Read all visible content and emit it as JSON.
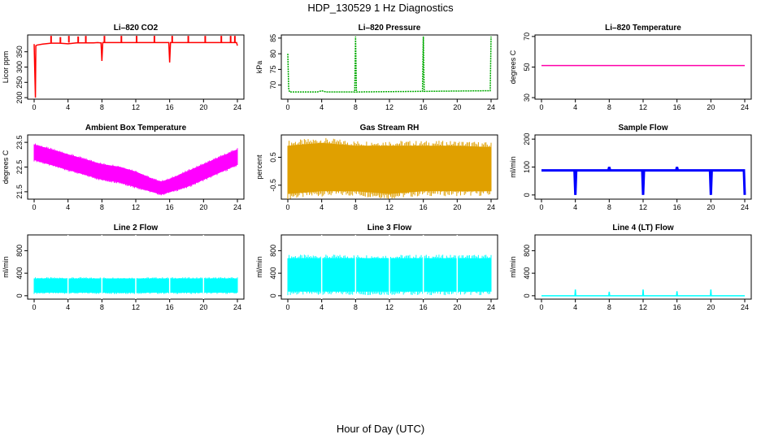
{
  "figure": {
    "title": "HDP_130529  1 Hz Diagnostics",
    "xlabel": "Hour of Day (UTC)"
  },
  "chart_data": [
    {
      "type": "line",
      "title": "Li–820 CO2",
      "ylabel": "Licor ppm",
      "color": "#ff0000",
      "xlim": [
        0,
        24
      ],
      "xticks": [
        0,
        4,
        8,
        12,
        16,
        20,
        24
      ],
      "ylim": [
        195,
        405
      ],
      "yticks": [
        200,
        250,
        300,
        350
      ],
      "x": [
        0,
        0.15,
        0.2,
        0.35,
        1,
        2,
        3,
        4,
        5,
        6,
        7,
        7.5,
        7.9,
        8,
        8.1,
        9,
        10,
        11,
        12,
        13,
        14,
        15,
        15.9,
        16,
        16.1,
        17,
        18,
        19,
        20,
        21,
        22,
        23,
        23.9,
        24
      ],
      "y": [
        375,
        200,
        370,
        372,
        375,
        378,
        378,
        376,
        379,
        379,
        379,
        380,
        379,
        320,
        380,
        380,
        380,
        380,
        380,
        380,
        380,
        380,
        380,
        315,
        380,
        380,
        380,
        380,
        380,
        380,
        380,
        380,
        380,
        370
      ],
      "spikes_x": [
        2,
        3.1,
        4.1,
        5.2,
        6.1,
        8.3,
        10.3,
        12.1,
        14.2,
        16.3,
        18.2,
        20.2,
        22.1,
        23.2,
        23.7
      ],
      "spikes_y": [
        402,
        398,
        402,
        400,
        402,
        402,
        402,
        402,
        402,
        402,
        402,
        402,
        402,
        402,
        402
      ]
    },
    {
      "type": "line",
      "title": "Li–820 Pressure",
      "ylabel": "kPa",
      "color": "#00aa00",
      "xlim": [
        0,
        24
      ],
      "xticks": [
        0,
        4,
        8,
        12,
        16,
        20,
        24
      ],
      "ylim": [
        65.5,
        86
      ],
      "yticks": [
        70,
        75,
        80,
        85
      ],
      "x": [
        0,
        0.1,
        0.2,
        0.3,
        3.5,
        4,
        4.5,
        7.9,
        8,
        8.1,
        15.9,
        16,
        16.1,
        23.9,
        24
      ],
      "y": [
        80,
        69,
        67.8,
        67.8,
        67.8,
        68.2,
        67.8,
        67.8,
        85.5,
        67.8,
        68,
        85.5,
        68,
        68.2,
        85.5
      ]
    },
    {
      "type": "line",
      "title": "Li–820 Temperature",
      "ylabel": "degrees C",
      "color": "#ff00aa",
      "xlim": [
        0,
        24
      ],
      "xticks": [
        0,
        4,
        8,
        12,
        16,
        20,
        24
      ],
      "ylim": [
        29,
        71
      ],
      "yticks": [
        30,
        50,
        70
      ],
      "x": [
        0,
        24
      ],
      "y": [
        51,
        51
      ]
    },
    {
      "type": "area",
      "title": "Ambient Box Temperature",
      "ylabel": "degrees C",
      "color": "#ff00ff",
      "xlim": [
        0,
        24
      ],
      "xticks": [
        0,
        4,
        8,
        12,
        16,
        20,
        24
      ],
      "ylim": [
        21.2,
        23.8
      ],
      "yticks": [
        21.5,
        22.5,
        23.5
      ],
      "x": [
        0,
        2,
        4,
        6,
        8,
        10,
        12,
        14,
        15,
        16,
        18,
        20,
        22,
        24
      ],
      "upper": [
        23.4,
        23.2,
        23.0,
        22.8,
        22.6,
        22.5,
        22.3,
        22.0,
        21.9,
        22.0,
        22.3,
        22.6,
        22.9,
        23.2
      ],
      "lower": [
        22.8,
        22.6,
        22.4,
        22.2,
        22.0,
        21.9,
        21.7,
        21.5,
        21.4,
        21.5,
        21.7,
        22.0,
        22.3,
        22.6
      ]
    },
    {
      "type": "area",
      "title": "Gas Stream RH",
      "ylabel": "percent",
      "color": "#e0a000",
      "xlim": [
        0,
        24
      ],
      "xticks": [
        0,
        4,
        8,
        12,
        16,
        20,
        24
      ],
      "ylim": [
        -1.0,
        1.3
      ],
      "yticks": [
        -0.5,
        0.5
      ],
      "x": [
        0,
        4,
        8,
        12,
        16,
        20,
        24
      ],
      "upper": [
        0.9,
        1.0,
        0.9,
        0.9,
        0.9,
        0.9,
        0.85
      ],
      "lower": [
        -0.8,
        -0.7,
        -0.7,
        -0.8,
        -0.7,
        -0.7,
        -0.7
      ]
    },
    {
      "type": "line",
      "title": "Sample Flow",
      "ylabel": "ml/min",
      "color": "#0000ff",
      "xlim": [
        0,
        24
      ],
      "xticks": [
        0,
        4,
        8,
        12,
        16,
        20,
        24
      ],
      "ylim": [
        -15,
        215
      ],
      "yticks": [
        0,
        100,
        200
      ],
      "x": [
        0,
        3.9,
        4,
        4.1,
        7.9,
        8,
        8.1,
        11.9,
        12,
        12.1,
        15.9,
        16,
        16.1,
        19.9,
        20,
        20.1,
        23.9,
        24
      ],
      "y": [
        88,
        88,
        0,
        88,
        88,
        100,
        88,
        88,
        0,
        88,
        88,
        100,
        88,
        88,
        0,
        88,
        88,
        0
      ]
    },
    {
      "type": "area",
      "title": "Line 2 Flow",
      "ylabel": "ml/min",
      "color": "#00ffff",
      "xlim": [
        0,
        24
      ],
      "xticks": [
        0,
        4,
        8,
        12,
        16,
        20,
        24
      ],
      "ylim": [
        -60,
        1080
      ],
      "yticks": [
        0,
        400,
        800
      ],
      "x": [
        0,
        4,
        8,
        12,
        16,
        20,
        24
      ],
      "upper": [
        300,
        300,
        300,
        300,
        300,
        300,
        300
      ],
      "lower": [
        60,
        60,
        60,
        60,
        60,
        60,
        60
      ]
    },
    {
      "type": "area",
      "title": "Line 3 Flow",
      "ylabel": "ml/min",
      "color": "#00ffff",
      "xlim": [
        0,
        24
      ],
      "xticks": [
        0,
        4,
        8,
        12,
        16,
        20,
        24
      ],
      "ylim": [
        -60,
        1080
      ],
      "yticks": [
        0,
        400,
        800
      ],
      "x": [
        0,
        4,
        8,
        12,
        16,
        20,
        24
      ],
      "upper": [
        660,
        660,
        660,
        660,
        660,
        660,
        660
      ],
      "lower": [
        80,
        80,
        80,
        80,
        80,
        80,
        80
      ]
    },
    {
      "type": "line",
      "title": "Line 4 (LT) Flow",
      "ylabel": "ml/min",
      "color": "#00ffff",
      "xlim": [
        0,
        24
      ],
      "xticks": [
        0,
        4,
        8,
        12,
        16,
        20,
        24
      ],
      "ylim": [
        -60,
        1080
      ],
      "yticks": [
        0,
        400,
        800
      ],
      "x": [
        0,
        3.95,
        4,
        4.05,
        7.95,
        8,
        8.05,
        11.95,
        12,
        12.05,
        15.95,
        16,
        16.05,
        19.95,
        20,
        20.05,
        24
      ],
      "y": [
        0,
        0,
        110,
        0,
        0,
        70,
        0,
        0,
        110,
        0,
        0,
        80,
        0,
        0,
        110,
        0,
        0
      ]
    }
  ]
}
